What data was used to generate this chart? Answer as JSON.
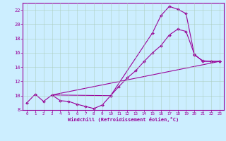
{
  "xlabel": "Windchill (Refroidissement éolien,°C)",
  "bg_color": "#cceeff",
  "line_color": "#990099",
  "grid_color": "#aaccbb",
  "xlim": [
    -0.5,
    23.5
  ],
  "ylim": [
    8,
    23
  ],
  "xticks": [
    0,
    1,
    2,
    3,
    4,
    5,
    6,
    7,
    8,
    9,
    10,
    11,
    12,
    13,
    14,
    15,
    16,
    17,
    18,
    19,
    20,
    21,
    22,
    23
  ],
  "yticks": [
    8,
    10,
    12,
    14,
    16,
    18,
    20,
    22
  ],
  "line1_x": [
    0,
    1,
    2,
    3,
    4,
    5,
    6,
    7,
    8,
    9,
    10,
    11,
    12,
    13,
    14,
    15,
    16,
    17,
    18,
    19,
    20,
    21,
    22,
    23
  ],
  "line1_y": [
    9.0,
    10.2,
    9.2,
    10.1,
    9.3,
    9.2,
    8.8,
    8.5,
    8.2,
    8.7,
    10.0,
    11.3,
    12.5,
    13.5,
    14.8,
    16.0,
    17.0,
    18.5,
    19.3,
    19.0,
    15.8,
    14.8,
    14.8,
    14.8
  ],
  "line2_x": [
    3,
    10,
    15,
    16,
    17,
    18,
    19,
    20,
    21,
    22,
    23
  ],
  "line2_y": [
    10.1,
    10.0,
    18.8,
    21.2,
    22.5,
    22.1,
    21.5,
    15.7,
    14.9,
    14.8,
    14.8
  ],
  "line3_x": [
    3,
    23
  ],
  "line3_y": [
    10.1,
    14.8
  ]
}
